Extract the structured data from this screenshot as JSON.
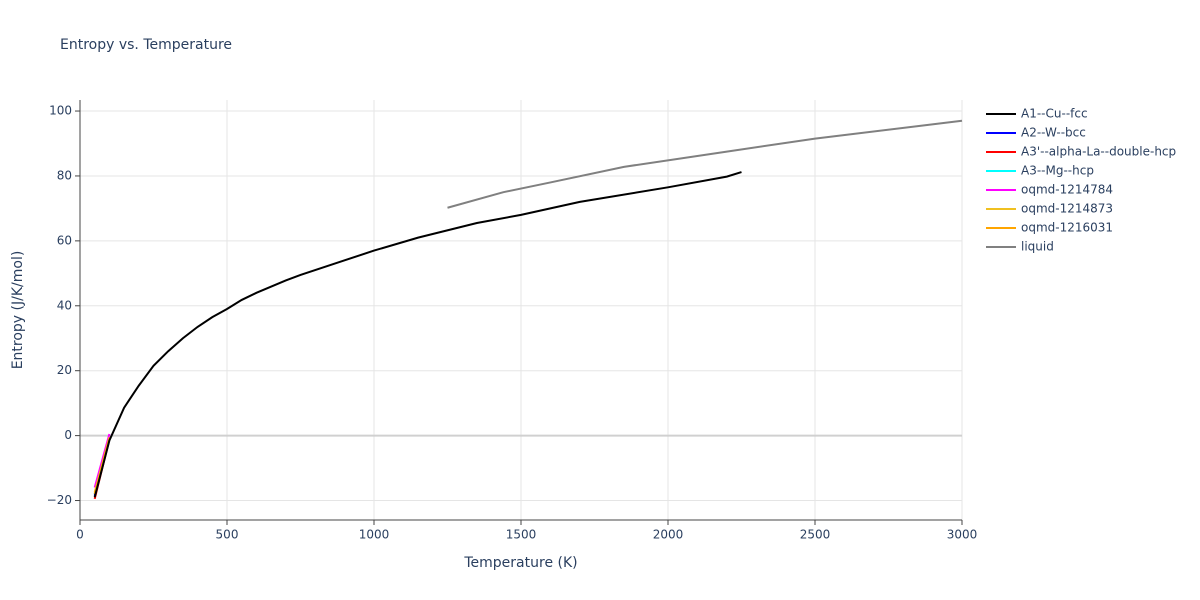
{
  "chart_data": {
    "type": "line",
    "title": "Entropy vs. Temperature",
    "x_label": "Temperature (K)",
    "y_label": "Entropy (J/K/mol)",
    "xlim": [
      0,
      3000
    ],
    "xticks": [
      0,
      500,
      1000,
      1500,
      2000,
      2500,
      3000
    ],
    "ylim": [
      -26,
      103.4
    ],
    "yticks": [
      {
        "value": -20,
        "label": "−20"
      },
      0,
      20,
      40,
      60,
      80,
      100
    ],
    "grid": true,
    "legend": "right",
    "series": [
      {
        "name": "A2--W--bcc",
        "color": "#0000ff",
        "x": [
          50,
          100
        ],
        "values": [
          -18.5,
          -1
        ]
      },
      {
        "name": "A3'--alpha-La--double-hcp",
        "color": "#ff0000",
        "x": [
          50,
          100
        ],
        "values": [
          -19.5,
          -1
        ]
      },
      {
        "name": "A3--Mg--hcp",
        "color": "#00ffff",
        "x": [
          50,
          100
        ],
        "values": [
          -18,
          -0.5
        ]
      },
      {
        "name": "oqmd-1214784",
        "color": "#ff00ff",
        "x": [
          50,
          100
        ],
        "values": [
          -16,
          0.5
        ]
      },
      {
        "name": "oqmd-1214873",
        "color": "#f0c020",
        "x": [
          50,
          100
        ],
        "values": [
          -17.5,
          -0.5
        ]
      },
      {
        "name": "oqmd-1216031",
        "color": "#ffa500",
        "x": [
          50,
          100
        ],
        "values": [
          -18,
          -0.8
        ]
      },
      {
        "name": "liquid",
        "color": "#808080",
        "x": [
          1250,
          1440,
          1600,
          1850,
          2200,
          2500,
          3000
        ],
        "values": [
          70.2,
          75,
          78,
          82.8,
          87.5,
          91.5,
          97
        ]
      },
      {
        "name": "A1--Cu--fcc",
        "color": "#000000",
        "x": [
          50,
          100,
          150,
          200,
          250,
          300,
          350,
          400,
          450,
          500,
          550,
          600,
          700,
          750,
          900,
          1000,
          1150,
          1350,
          1500,
          1700,
          2000,
          2200,
          2250
        ],
        "values": [
          -19,
          -1.5,
          8.6,
          15.4,
          21.5,
          26,
          30,
          33.5,
          36.5,
          39,
          41.8,
          44,
          47.8,
          49.5,
          54,
          57,
          61,
          65.5,
          68,
          72,
          76.5,
          79.8,
          81.2
        ]
      }
    ],
    "legend_order": [
      7,
      0,
      1,
      2,
      3,
      4,
      5,
      6
    ]
  }
}
